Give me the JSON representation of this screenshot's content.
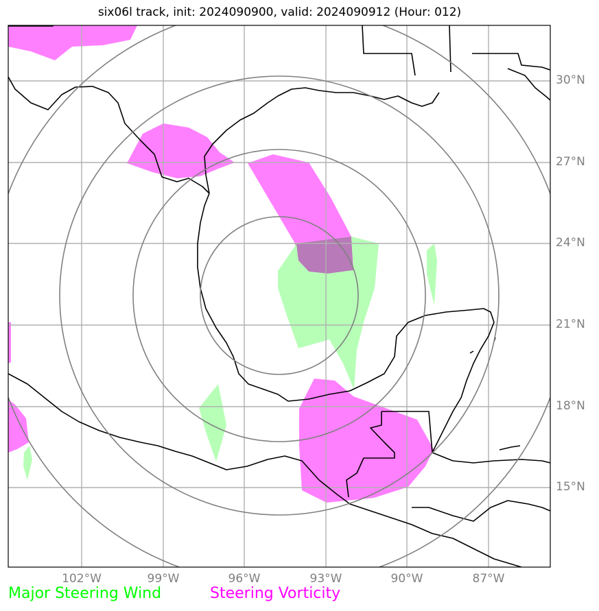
{
  "title": "six06l track, init: 2024090900, valid: 2024090912 (Hour: 012)",
  "lat_labels": [
    "30°N",
    "27°N",
    "24°N",
    "21°N",
    "18°N",
    "15°N"
  ],
  "lon_labels": [
    "102°W",
    "99°W",
    "96°W",
    "93°W",
    "90°W",
    "87°W"
  ],
  "legend": {
    "wind": "Major Steering Wind",
    "vorticity": "Steering Vorticity"
  },
  "colors": {
    "wind": "#00ff00",
    "vorticity": "#ff00ff",
    "wind_fill": "#b7ffb7",
    "vorticity_fill": "#ff80ff",
    "overlap_fill": "#b87ab8",
    "grid": "#b0b0b0",
    "range_rings": "#808080",
    "coastline": "#000000",
    "label": "#808080"
  }
}
